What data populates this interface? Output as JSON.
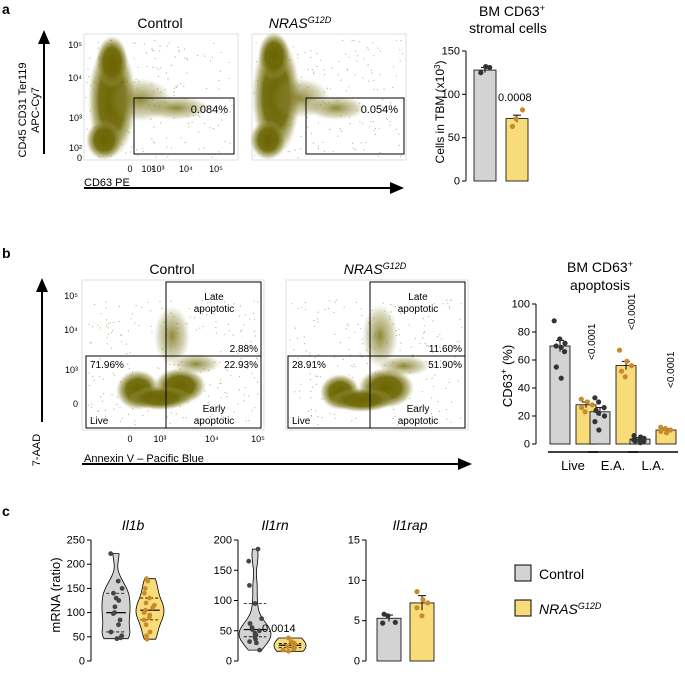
{
  "panels": {
    "a": {
      "letter": "a",
      "flow": {
        "y_axis_label_line1": "CD45 CD31 Ter119",
        "y_axis_label_line2": "APC-Cy7",
        "x_axis_label": "CD63 PE",
        "x_ticks": [
          "0",
          "10²",
          "10³",
          "10⁴",
          "10⁵"
        ],
        "y_ticks": [
          "10⁵",
          "10⁴",
          "10³",
          "10²",
          "0"
        ],
        "plots": [
          {
            "title": "Control",
            "gate_percent": "0.084%"
          },
          {
            "title_base": "NRAS",
            "title_sup": "G12D",
            "gate_percent": "0.054%"
          }
        ]
      },
      "bar_title_line1": "BM CD63",
      "bar_title_sup": "+",
      "bar_title_line2": "stromal cells",
      "bar_ylabel_base": "Cells in TBM (x10",
      "bar_ylabel_sup": "3",
      "bar_ylabel_end": ")",
      "pvalue": "0.0008"
    },
    "b": {
      "letter": "b",
      "flow": {
        "y_axis_label": "7-AAD",
        "x_axis_label": "Annexin V – Pacific Blue",
        "x_ticks": [
          "0",
          "10³",
          "10⁴",
          "10⁵"
        ],
        "y_ticks": [
          "10⁵",
          "10⁴",
          "10³",
          "0"
        ],
        "gate_labels": {
          "late": [
            "Late",
            "apoptotic"
          ],
          "early": [
            "Early",
            "apoptotic"
          ],
          "live": "Live"
        },
        "plots": [
          {
            "title": "Control",
            "live": "71.96%",
            "early": "22.93%",
            "late": "2.88%"
          },
          {
            "title_base": "NRAS",
            "title_sup": "G12D",
            "live": "28.91%",
            "early": "51.90%",
            "late": "11.60%"
          }
        ]
      },
      "bar_title_line1": "BM CD63",
      "bar_title_sup": "+",
      "bar_title_line2": "apoptosis",
      "bar_ylabel_base": "CD63",
      "bar_ylabel_sup": "+",
      "bar_ylabel_end": " (%)",
      "pvalues": [
        "<0.0001",
        "<0.0001",
        "<0.0001"
      ]
    },
    "c": {
      "letter": "c",
      "ylabel": "mRNA (ratio)",
      "pvalue_il1rn": "0.0014",
      "legend": [
        {
          "label": "Control",
          "color": "#d3d3d3"
        },
        {
          "label_base": "NRAS",
          "label_sup": "G12D",
          "color": "#f9dc7a"
        }
      ]
    }
  },
  "chart_data": [
    {
      "type": "bar",
      "panel": "a",
      "title": "BM CD63+ stromal cells",
      "ylabel": "Cells in TBM (x10^3)",
      "categories": [
        "Control",
        "NRAS G12D"
      ],
      "values": [
        128,
        72
      ],
      "errors": [
        3,
        4
      ],
      "points": [
        [
          125,
          132,
          131
        ],
        [
          63,
          72,
          82
        ]
      ],
      "ylim": [
        0,
        150
      ],
      "yticks": [
        0,
        50,
        100,
        150
      ],
      "colors": [
        "#d3d3d3",
        "#f9dc7a"
      ]
    },
    {
      "type": "bar",
      "panel": "b",
      "title": "BM CD63+ apoptosis",
      "ylabel": "CD63+ (%)",
      "categories": [
        "Live",
        "E.A.",
        "L.A."
      ],
      "series": [
        {
          "name": "Control",
          "values": [
            70,
            23,
            3.5
          ],
          "errors": [
            4,
            3,
            1
          ],
          "points": [
            [
              88,
              75,
              72,
              70,
              69,
              66,
              55,
              47
            ],
            [
              33,
              30,
              26,
              24,
              22,
              20,
              16,
              10
            ],
            [
              6,
              5,
              4,
              3,
              3,
              2,
              2,
              1
            ]
          ]
        },
        {
          "name": "NRAS G12D",
          "values": [
            28,
            56,
            10
          ],
          "errors": [
            2,
            3,
            1
          ],
          "points": [
            [
              32,
              30,
              28,
              26,
              23
            ],
            [
              67,
              59,
              56,
              52,
              48
            ],
            [
              12,
              11,
              10,
              9,
              8
            ]
          ]
        }
      ],
      "ylim": [
        0,
        100
      ],
      "yticks": [
        0,
        20,
        40,
        60,
        80,
        100
      ],
      "colors": [
        "#d3d3d3",
        "#f9dc7a"
      ]
    },
    {
      "type": "violin",
      "panel": "c",
      "title": "Il1b",
      "ylabel": "mRNA (ratio)",
      "ylim": [
        0,
        250
      ],
      "yticks": [
        0,
        50,
        100,
        150,
        200,
        250
      ],
      "series": [
        {
          "name": "Control",
          "points": [
            222,
            165,
            150,
            140,
            130,
            125,
            112,
            100,
            98,
            85,
            75,
            60,
            52,
            48,
            46
          ]
        },
        {
          "name": "NRAS G12D",
          "points": [
            170,
            165,
            150,
            140,
            130,
            120,
            115,
            110,
            105,
            100,
            95,
            90,
            85,
            75,
            60,
            52,
            45
          ]
        }
      ]
    },
    {
      "type": "violin",
      "panel": "c",
      "title": "Il1rn",
      "ylim": [
        0,
        200
      ],
      "yticks": [
        0,
        50,
        100,
        150,
        200
      ],
      "series": [
        {
          "name": "Control",
          "points": [
            185,
            165,
            125,
            95,
            70,
            62,
            55,
            52,
            50,
            46,
            43,
            40,
            36,
            32,
            30,
            18
          ]
        },
        {
          "name": "NRAS G12D",
          "points": [
            38,
            32,
            30,
            29,
            28,
            27,
            26,
            25,
            24,
            24,
            22,
            20,
            18,
            16
          ]
        }
      ]
    },
    {
      "type": "bar",
      "panel": "c",
      "title": "Il1rap",
      "ylim": [
        0,
        15
      ],
      "yticks": [
        0,
        5,
        10,
        15
      ],
      "categories": [
        "Control",
        "NRAS G12D"
      ],
      "values": [
        5.3,
        7.2
      ],
      "errors": [
        0.4,
        0.9
      ],
      "points": [
        [
          5.8,
          5.6,
          4.8,
          4.7
        ],
        [
          8.6,
          7.6,
          7.2,
          6.6,
          5.6
        ]
      ],
      "colors": [
        "#d3d3d3",
        "#f9dc7a"
      ]
    }
  ]
}
